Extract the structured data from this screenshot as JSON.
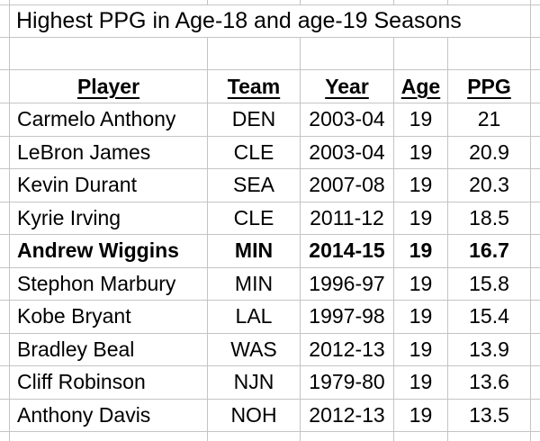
{
  "title": "Highest PPG in Age-18 and age-19 Seasons",
  "table": {
    "headers": {
      "player": "Player",
      "team": "Team",
      "year": "Year",
      "age": "Age",
      "ppg": "PPG"
    },
    "rows": [
      {
        "player": "Carmelo Anthony",
        "team": "DEN",
        "year": "2003-04",
        "age": "19",
        "ppg": "21",
        "bold": false
      },
      {
        "player": "LeBron James",
        "team": "CLE",
        "year": "2003-04",
        "age": "19",
        "ppg": "20.9",
        "bold": false
      },
      {
        "player": "Kevin Durant",
        "team": "SEA",
        "year": "2007-08",
        "age": "19",
        "ppg": "20.3",
        "bold": false
      },
      {
        "player": "Kyrie Irving",
        "team": "CLE",
        "year": "2011-12",
        "age": "19",
        "ppg": "18.5",
        "bold": false
      },
      {
        "player": "Andrew Wiggins",
        "team": "MIN",
        "year": "2014-15",
        "age": "19",
        "ppg": "16.7",
        "bold": true
      },
      {
        "player": "Stephon Marbury",
        "team": "MIN",
        "year": "1996-97",
        "age": "19",
        "ppg": "15.8",
        "bold": false
      },
      {
        "player": "Kobe Bryant",
        "team": "LAL",
        "year": "1997-98",
        "age": "19",
        "ppg": "15.4",
        "bold": false
      },
      {
        "player": "Bradley Beal",
        "team": "WAS",
        "year": "2012-13",
        "age": "19",
        "ppg": "13.9",
        "bold": false
      },
      {
        "player": "Cliff Robinson",
        "team": "NJN",
        "year": "1979-80",
        "age": "19",
        "ppg": "13.6",
        "bold": false
      },
      {
        "player": "Anthony Davis",
        "team": "NOH",
        "year": "2012-13",
        "age": "19",
        "ppg": "13.5",
        "bold": false
      }
    ]
  },
  "colors": {
    "gridline": "#c4c4c4",
    "text": "#000000",
    "background": "#ffffff"
  }
}
